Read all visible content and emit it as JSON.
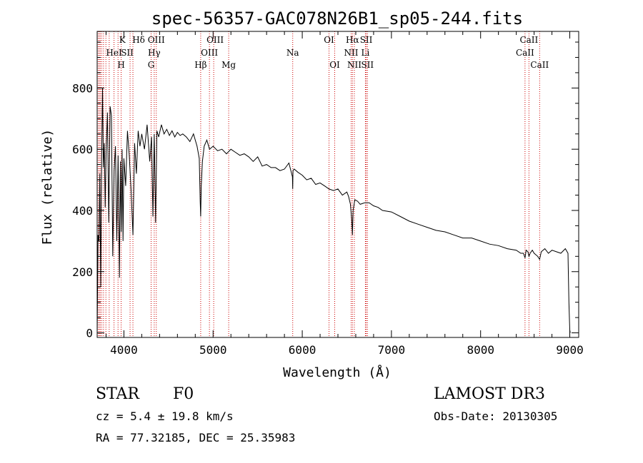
{
  "chart_data": {
    "type": "line",
    "title": "spec-56357-GAC078N26B1_sp05-244.fits",
    "xlabel": "Wavelength (Å)",
    "ylabel": "Flux (relative)",
    "xlim": [
      3700,
      9100
    ],
    "ylim": [
      -15,
      985
    ],
    "xticks": [
      4000,
      5000,
      6000,
      7000,
      8000,
      9000
    ],
    "yticks": [
      0,
      200,
      400,
      600,
      800
    ],
    "series": [
      {
        "name": "flux",
        "x": [
          3700,
          3710,
          3720,
          3730,
          3740,
          3750,
          3760,
          3770,
          3780,
          3790,
          3800,
          3815,
          3830,
          3845,
          3860,
          3875,
          3890,
          3905,
          3920,
          3935,
          3950,
          3960,
          3970,
          3980,
          3990,
          4000,
          4020,
          4040,
          4060,
          4080,
          4101,
          4120,
          4140,
          4160,
          4180,
          4200,
          4230,
          4260,
          4290,
          4310,
          4325,
          4340,
          4355,
          4370,
          4390,
          4420,
          4450,
          4480,
          4510,
          4540,
          4570,
          4600,
          4630,
          4660,
          4700,
          4740,
          4780,
          4820,
          4845,
          4855,
          4861,
          4867,
          4880,
          4900,
          4930,
          4960,
          5000,
          5050,
          5100,
          5150,
          5200,
          5250,
          5300,
          5350,
          5400,
          5450,
          5500,
          5550,
          5600,
          5650,
          5700,
          5750,
          5800,
          5850,
          5890,
          5893,
          5896,
          5910,
          5950,
          6000,
          6050,
          6100,
          6150,
          6200,
          6250,
          6300,
          6350,
          6400,
          6450,
          6500,
          6520,
          6540,
          6555,
          6563,
          6570,
          6590,
          6620,
          6650,
          6700,
          6750,
          6800,
          6850,
          6900,
          7000,
          7100,
          7200,
          7300,
          7400,
          7500,
          7600,
          7700,
          7800,
          7900,
          8000,
          8100,
          8200,
          8300,
          8400,
          8450,
          8480,
          8498,
          8510,
          8530,
          8542,
          8555,
          8580,
          8600,
          8640,
          8662,
          8680,
          8720,
          8760,
          8800,
          8850,
          8900,
          8950,
          8980,
          8990,
          9000,
          9005
        ],
        "values": [
          0,
          320,
          300,
          520,
          150,
          560,
          800,
          540,
          620,
          410,
          590,
          720,
          360,
          740,
          710,
          250,
          530,
          610,
          300,
          580,
          180,
          560,
          330,
          600,
          300,
          570,
          480,
          660,
          580,
          470,
          320,
          620,
          520,
          660,
          610,
          650,
          600,
          680,
          560,
          640,
          380,
          650,
          360,
          660,
          640,
          680,
          650,
          665,
          645,
          660,
          640,
          655,
          645,
          650,
          640,
          625,
          650,
          610,
          570,
          430,
          380,
          480,
          560,
          610,
          630,
          600,
          610,
          595,
          600,
          585,
          600,
          590,
          580,
          585,
          575,
          560,
          575,
          545,
          550,
          540,
          540,
          530,
          535,
          555,
          510,
          470,
          530,
          535,
          525,
          515,
          500,
          505,
          485,
          490,
          480,
          470,
          465,
          470,
          450,
          460,
          445,
          420,
          370,
          320,
          400,
          435,
          430,
          420,
          425,
          425,
          415,
          410,
          400,
          395,
          380,
          365,
          355,
          345,
          335,
          330,
          320,
          310,
          310,
          300,
          290,
          285,
          275,
          270,
          260,
          260,
          245,
          270,
          265,
          250,
          260,
          270,
          260,
          250,
          240,
          265,
          275,
          260,
          270,
          265,
          260,
          275,
          260,
          100,
          10,
          0
        ]
      }
    ],
    "lines": [
      {
        "label": "Hδ",
        "wl": 4101,
        "row": 1,
        "dx": 8
      },
      {
        "label": "K",
        "wl": 3934,
        "row": 1,
        "dx": 6
      },
      {
        "label": "HeI",
        "wl": 3889,
        "row": 2,
        "dx": 0
      },
      {
        "label": "SII",
        "wl": 4069,
        "row": 2,
        "dx": -4
      },
      {
        "label": "H",
        "wl": 3969,
        "row": 3,
        "dx": 0
      },
      {
        "label": "OIII",
        "wl": 4363,
        "row": 1,
        "dx": 0
      },
      {
        "label": "Hγ",
        "wl": 4340,
        "row": 2,
        "dx": 0
      },
      {
        "label": "G",
        "wl": 4305,
        "row": 3,
        "dx": 0
      },
      {
        "label": "OIII",
        "wl": 5007,
        "row": 1,
        "dx": 2
      },
      {
        "label": "OIII",
        "wl": 4959,
        "row": 2,
        "dx": 0
      },
      {
        "label": "Hβ",
        "wl": 4861,
        "row": 3,
        "dx": 0
      },
      {
        "label": "Mg",
        "wl": 5175,
        "row": 3,
        "dx": 0
      },
      {
        "label": "Na",
        "wl": 5893,
        "row": 2,
        "dx": 0
      },
      {
        "label": "OI",
        "wl": 6300,
        "row": 1,
        "dx": 0
      },
      {
        "label": "OI",
        "wl": 6364,
        "row": 3,
        "dx": 0
      },
      {
        "label": "Hα",
        "wl": 6563,
        "row": 1,
        "dx": 0
      },
      {
        "label": "NII",
        "wl": 6548,
        "row": 2,
        "dx": 0
      },
      {
        "label": "NII",
        "wl": 6584,
        "row": 3,
        "dx": 0
      },
      {
        "label": "SII",
        "wl": 6717,
        "row": 1,
        "dx": 0
      },
      {
        "label": "Li",
        "wl": 6708,
        "row": 2,
        "dx": 0
      },
      {
        "label": "SII",
        "wl": 6731,
        "row": 3,
        "dx": 0
      },
      {
        "label": "CaII",
        "wl": 8542,
        "row": 1,
        "dx": 0
      },
      {
        "label": "CaII",
        "wl": 8498,
        "row": 2,
        "dx": 0
      },
      {
        "label": "CaII",
        "wl": 8662,
        "row": 3,
        "dx": 0
      }
    ],
    "extra_lines_wl": [
      3712,
      3727,
      3734,
      3750,
      3771,
      3798,
      3835
    ]
  },
  "info": {
    "class": "STAR",
    "subclass": "F0",
    "survey": "LAMOST DR3",
    "redshift": "cz = 5.4 ± 19.8 km/s",
    "obs_date": "Obs-Date: 20130305",
    "coords": "RA =  77.32185, DEC =  25.35983"
  },
  "colors": {
    "lines": "#cc0000",
    "spectrum": "#000000"
  }
}
